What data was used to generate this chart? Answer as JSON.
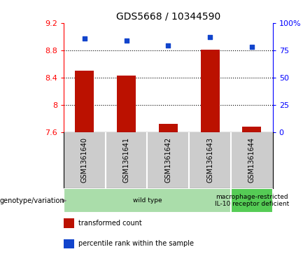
{
  "title": "GDS5668 / 10344590",
  "samples": [
    "GSM1361640",
    "GSM1361641",
    "GSM1361642",
    "GSM1361643",
    "GSM1361644"
  ],
  "transformed_count": [
    8.5,
    8.43,
    7.72,
    8.81,
    7.68
  ],
  "percentile_rank": [
    86,
    84,
    79,
    87,
    78
  ],
  "ylim_left": [
    7.6,
    9.2
  ],
  "ylim_right": [
    0,
    100
  ],
  "yticks_left": [
    7.6,
    8.0,
    8.4,
    8.8,
    9.2
  ],
  "ytick_labels_left": [
    "7.6",
    "8",
    "8.4",
    "8.8",
    "9.2"
  ],
  "yticks_right": [
    0,
    25,
    50,
    75,
    100
  ],
  "ytick_labels_right": [
    "0",
    "25",
    "50",
    "75",
    "100%"
  ],
  "hlines": [
    8.0,
    8.4,
    8.8
  ],
  "bar_color": "#bb1100",
  "dot_color": "#1144cc",
  "bar_width": 0.45,
  "genotype_groups": [
    {
      "label": "wild type",
      "samples": [
        0,
        1,
        2,
        3
      ],
      "color": "#aaddaa"
    },
    {
      "label": "macrophage-restricted\nIL-10 receptor deficient",
      "samples": [
        4
      ],
      "color": "#55cc55"
    }
  ],
  "genotype_label": "genotype/variation",
  "legend_items": [
    {
      "color": "#bb1100",
      "label": "transformed count"
    },
    {
      "color": "#1144cc",
      "label": "percentile rank within the sample"
    }
  ],
  "background_color": "#ffffff",
  "plot_bg_color": "#ffffff",
  "label_area_bg": "#cccccc"
}
